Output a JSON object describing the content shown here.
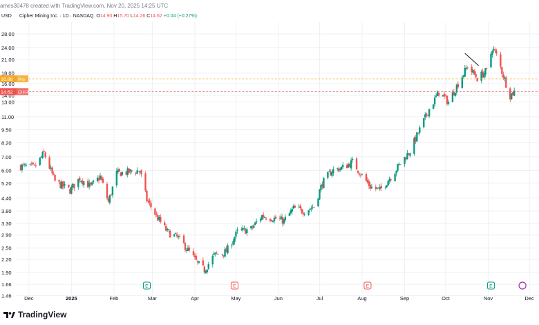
{
  "header": {
    "created_by": "ames30478 created with TradingView.com, Nov 20, 2025 14:25 UTC"
  },
  "ticker": {
    "name": "Cipher Mining Inc. · 1D · NASDAQ",
    "o": "O",
    "o_val": "14.90",
    "h": "H",
    "h_val": "15.70",
    "l": "L",
    "l_val": "14.26",
    "c": "C",
    "c_val": "14.62",
    "change": "+0.04 (+0.27%)"
  },
  "currency": "USD",
  "footer": {
    "brand": "TradingView",
    "logo_icon": "tradingview-logo-icon"
  },
  "colors": {
    "up": "#089981",
    "down": "#ef5350",
    "prior_line": "#f5a623",
    "last_line": "#ef5350",
    "grid": "#eef0f3"
  },
  "chart_data": {
    "type": "candlestick",
    "title": "Cipher Mining Inc. · 1D · NASDAQ",
    "y_scale": "log",
    "ylim": [
      1.55,
      32.0
    ],
    "y_ticks": [
      "28.00",
      "24.00",
      "21.00",
      "18.00",
      "16.00",
      "14.00",
      "13.00",
      "11.00",
      "9.50",
      "8.20",
      "7.00",
      "6.00",
      "5.20",
      "4.40",
      "3.80",
      "3.30",
      "2.90",
      "2.50",
      "2.20",
      "1.90",
      "1.66",
      "1.46"
    ],
    "x_ticks": [
      "Dec",
      "2025",
      "Feb",
      "Mar",
      "Apr",
      "May",
      "Jun",
      "Jul",
      "Aug",
      "Sep",
      "Oct",
      "Nov",
      "Dec"
    ],
    "price_lines": [
      {
        "label": "16.88",
        "tag": "Pre",
        "value": 16.88,
        "color": "#f5a623"
      },
      {
        "label": "14.62",
        "tag": "CIFR",
        "value": 14.62,
        "color": "#ef5350"
      }
    ],
    "event_markers": [
      {
        "label": "E",
        "date": "Feb 25"
      },
      {
        "label": "E",
        "date": "Apr 30"
      },
      {
        "label": "E",
        "date": "Aug 5"
      },
      {
        "label": "E",
        "date": "Nov 3"
      }
    ],
    "close_series": [
      {
        "date": "Nov 25",
        "close": 6.3
      },
      {
        "date": "Dec 5",
        "close": 6.2
      },
      {
        "date": "Dec 12",
        "close": 7.3
      },
      {
        "date": "Dec 20",
        "close": 5.3
      },
      {
        "date": "Dec 31",
        "close": 4.8
      },
      {
        "date": "Jan 7",
        "close": 5.5
      },
      {
        "date": "Jan 15",
        "close": 5.0
      },
      {
        "date": "Jan 22",
        "close": 5.6
      },
      {
        "date": "Jan 28",
        "close": 4.2
      },
      {
        "date": "Feb 3",
        "close": 5.8
      },
      {
        "date": "Feb 12",
        "close": 5.9
      },
      {
        "date": "Feb 20",
        "close": 6.0
      },
      {
        "date": "Feb 25",
        "close": 4.3
      },
      {
        "date": "Mar 5",
        "close": 3.5
      },
      {
        "date": "Mar 12",
        "close": 3.0
      },
      {
        "date": "Mar 20",
        "close": 2.8
      },
      {
        "date": "Mar 28",
        "close": 2.4
      },
      {
        "date": "Apr 3",
        "close": 2.1
      },
      {
        "date": "Apr 8",
        "close": 1.95
      },
      {
        "date": "Apr 15",
        "close": 2.3
      },
      {
        "date": "Apr 24",
        "close": 2.4
      },
      {
        "date": "May 2",
        "close": 3.0
      },
      {
        "date": "May 12",
        "close": 3.1
      },
      {
        "date": "May 20",
        "close": 3.6
      },
      {
        "date": "May 28",
        "close": 3.5
      },
      {
        "date": "Jun 5",
        "close": 3.4
      },
      {
        "date": "Jun 12",
        "close": 3.9
      },
      {
        "date": "Jun 20",
        "close": 3.8
      },
      {
        "date": "Jun 27",
        "close": 4.0
      },
      {
        "date": "Jul 3",
        "close": 5.2
      },
      {
        "date": "Jul 10",
        "close": 6.0
      },
      {
        "date": "Jul 18",
        "close": 6.2
      },
      {
        "date": "Jul 25",
        "close": 6.6
      },
      {
        "date": "Jul 31",
        "close": 5.8
      },
      {
        "date": "Aug 7",
        "close": 5.0
      },
      {
        "date": "Aug 14",
        "close": 4.8
      },
      {
        "date": "Aug 22",
        "close": 5.6
      },
      {
        "date": "Aug 29",
        "close": 6.5
      },
      {
        "date": "Sep 5",
        "close": 7.5
      },
      {
        "date": "Sep 12",
        "close": 9.5
      },
      {
        "date": "Sep 19",
        "close": 12.0
      },
      {
        "date": "Sep 26",
        "close": 14.5
      },
      {
        "date": "Oct 3",
        "close": 13.0
      },
      {
        "date": "Oct 10",
        "close": 16.0
      },
      {
        "date": "Oct 17",
        "close": 19.5
      },
      {
        "date": "Oct 24",
        "close": 17.0
      },
      {
        "date": "Oct 31",
        "close": 18.5
      },
      {
        "date": "Nov 4",
        "close": 24.0
      },
      {
        "date": "Nov 7",
        "close": 22.0
      },
      {
        "date": "Nov 12",
        "close": 17.5
      },
      {
        "date": "Nov 17",
        "close": 14.0
      },
      {
        "date": "Nov 20",
        "close": 14.62
      }
    ]
  }
}
